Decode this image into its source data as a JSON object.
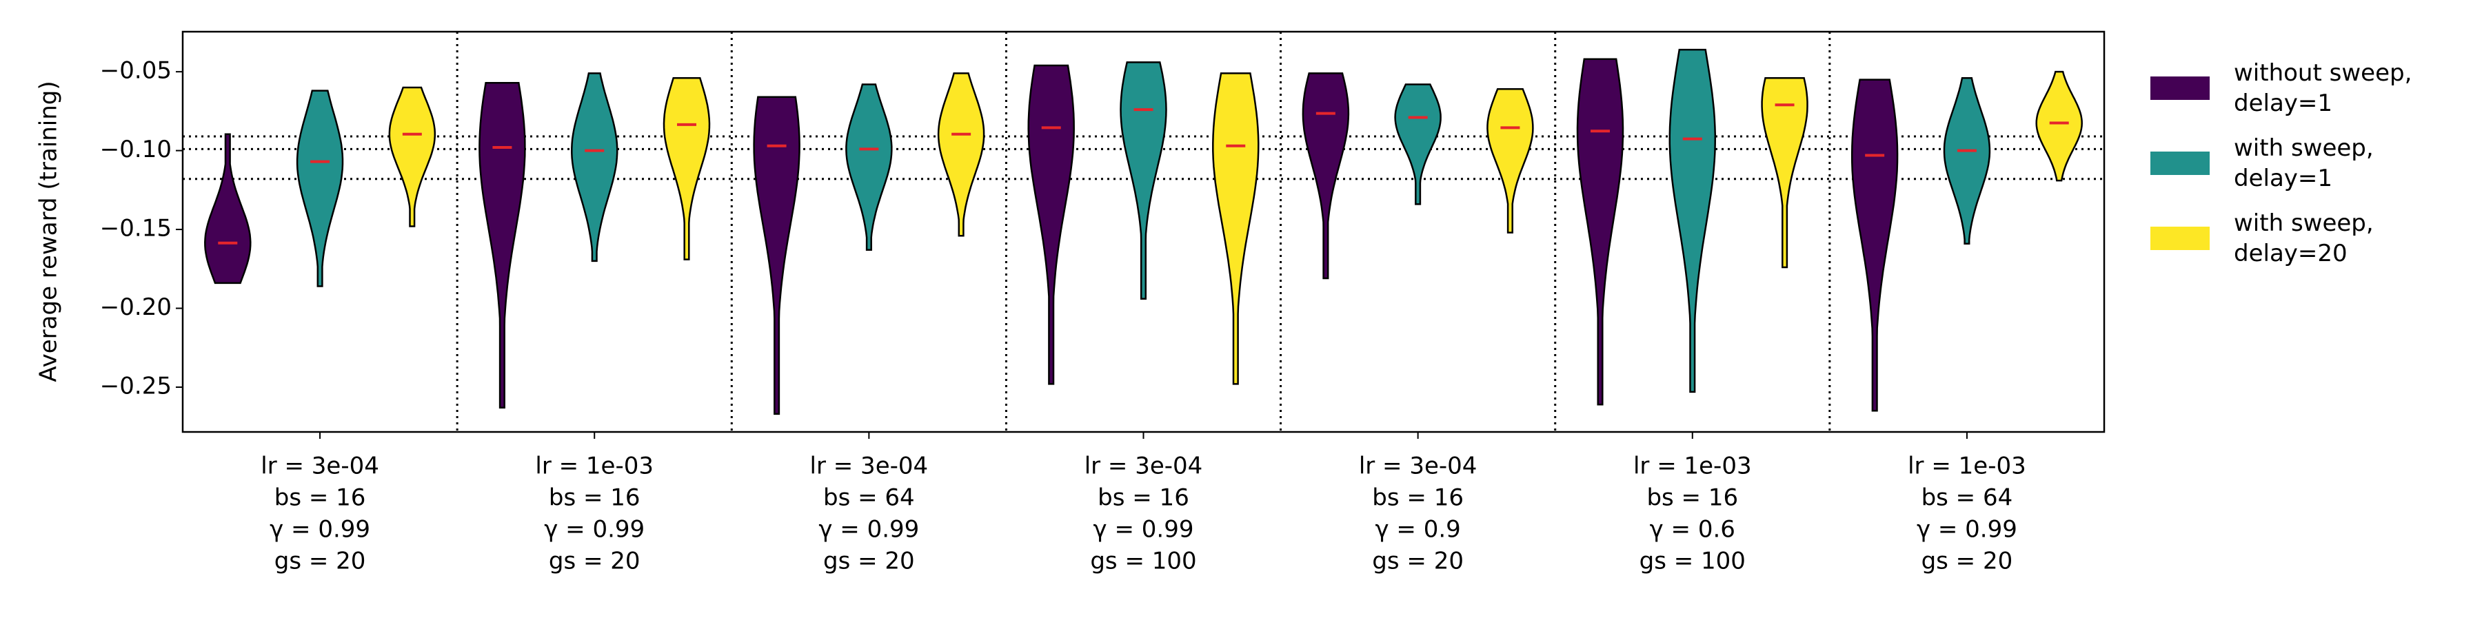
{
  "chart_data": {
    "type": "violin",
    "y_label": "Average reward (training)",
    "categories": [
      [
        "lr = 3e-04",
        "bs = 16",
        "γ = 0.99",
        "gs = 20"
      ],
      [
        "lr = 1e-03",
        "bs = 16",
        "γ = 0.99",
        "gs = 20"
      ],
      [
        "lr = 3e-04",
        "bs = 64",
        "γ = 0.99",
        "gs = 20"
      ],
      [
        "lr = 3e-04",
        "bs = 16",
        "γ = 0.99",
        "gs = 100"
      ],
      [
        "lr = 3e-04",
        "bs = 16",
        "γ = 0.9",
        "gs = 20"
      ],
      [
        "lr = 1e-03",
        "bs = 16",
        "γ = 0.6",
        "gs = 100"
      ],
      [
        "lr = 1e-03",
        "bs = 64",
        "γ = 0.99",
        "gs = 20"
      ]
    ],
    "series": [
      {
        "name": "without sweep,\ndelay=1",
        "color": "#440154",
        "max": [
          -0.0896,
          -0.057,
          -0.066,
          -0.046,
          -0.051,
          -0.042,
          -0.055
        ],
        "min": [
          -0.184,
          -0.263,
          -0.267,
          -0.248,
          -0.181,
          -0.261,
          -0.265
        ],
        "median": [
          -0.1586,
          -0.098,
          -0.097,
          -0.0855,
          -0.0764,
          -0.0876,
          -0.103
        ]
      },
      {
        "name": "with sweep,\ndelay=1",
        "color": "#21918c",
        "max": [
          -0.062,
          -0.051,
          -0.058,
          -0.044,
          -0.058,
          -0.036,
          -0.054
        ],
        "min": [
          -0.186,
          -0.17,
          -0.163,
          -0.194,
          -0.134,
          -0.253,
          -0.159
        ],
        "median": [
          -0.107,
          -0.1,
          -0.099,
          -0.074,
          -0.079,
          -0.0926,
          -0.1
        ]
      },
      {
        "name": "with sweep,\ndelay=20",
        "color": "#fde725",
        "max": [
          -0.06,
          -0.054,
          -0.051,
          -0.051,
          -0.061,
          -0.054,
          -0.05
        ],
        "min": [
          -0.148,
          -0.169,
          -0.154,
          -0.248,
          -0.152,
          -0.174,
          -0.119
        ],
        "median": [
          -0.0896,
          -0.0835,
          -0.0896,
          -0.097,
          -0.0855,
          -0.071,
          -0.0825
        ]
      }
    ],
    "median_color": "#e5262b",
    "hlines": [
      -0.091,
      -0.099,
      -0.118
    ],
    "ylim": [
      -0.2784,
      -0.0246
    ],
    "yticks": [
      {
        "value": -0.25,
        "label": "−0.25"
      },
      {
        "value": -0.2,
        "label": "−0.20"
      },
      {
        "value": -0.15,
        "label": "−0.15"
      },
      {
        "value": -0.1,
        "label": "−0.10"
      },
      {
        "value": -0.05,
        "label": "−0.05"
      }
    ],
    "legend": "right"
  }
}
